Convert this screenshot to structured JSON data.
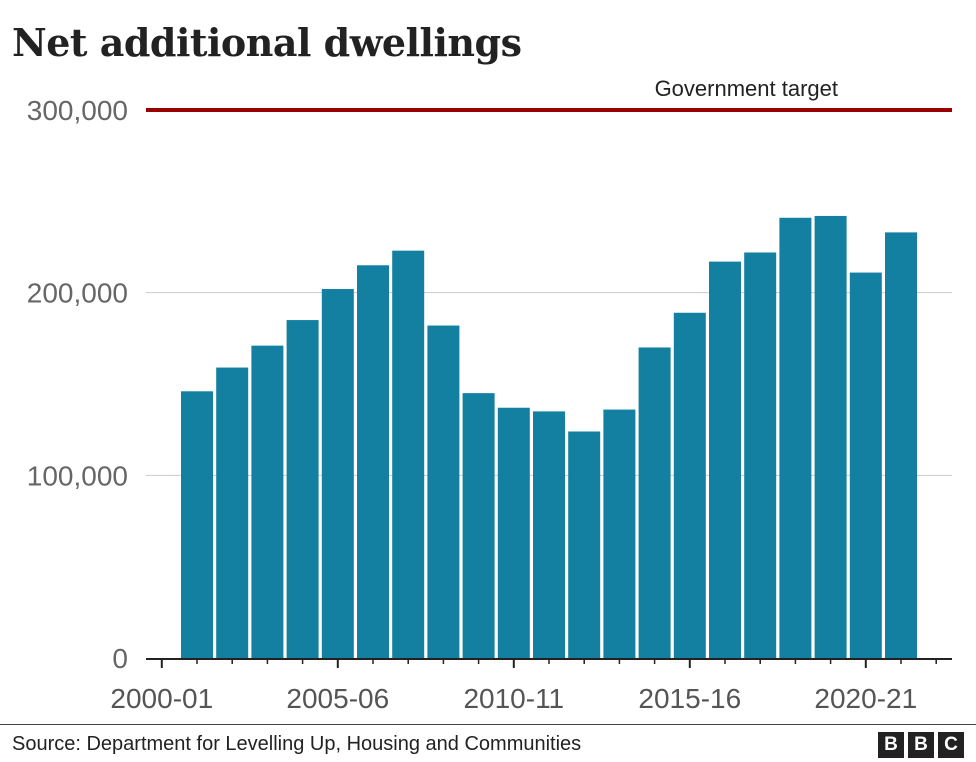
{
  "chart_data": {
    "type": "bar",
    "title": "Net additional dwellings",
    "categories": [
      "2001-02",
      "2002-03",
      "2003-04",
      "2004-05",
      "2005-06",
      "2006-07",
      "2007-08",
      "2008-09",
      "2009-10",
      "2010-11",
      "2011-12",
      "2012-13",
      "2013-14",
      "2014-15",
      "2015-16",
      "2016-17",
      "2017-18",
      "2018-19",
      "2019-20",
      "2020-21",
      "2021-22"
    ],
    "values": [
      146000,
      159000,
      171000,
      185000,
      202000,
      215000,
      223000,
      182000,
      145000,
      137000,
      135000,
      124000,
      136000,
      170000,
      189000,
      217000,
      222000,
      241000,
      242000,
      211000,
      233000
    ],
    "ylim": [
      0,
      300000
    ],
    "yticks": [
      0,
      100000,
      200000,
      300000
    ],
    "ytick_labels": [
      "0",
      "100,000",
      "200,000",
      "300,000"
    ],
    "xtick_labels": [
      "2000-01",
      "2005-06",
      "2010-11",
      "2015-16",
      "2020-21"
    ],
    "xlabel": "",
    "ylabel": "",
    "grid": true,
    "bar_color": "#1380A1",
    "reference_line": {
      "value": 300000,
      "label": "Government target",
      "color": "#990000"
    }
  },
  "footer": {
    "source": "Source: Department for Levelling Up, Housing and Communities",
    "logo": [
      "B",
      "B",
      "C"
    ]
  }
}
